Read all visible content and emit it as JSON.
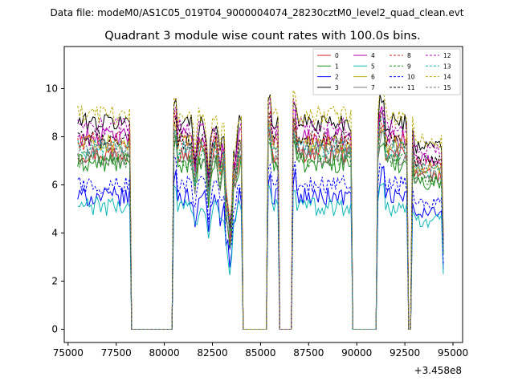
{
  "suptitle": "Data file: modeM0/AS1C05_019T04_9000004074_28230cztM0_level2_quad_clean.evt",
  "chart_data": {
    "type": "line",
    "title": "Quadrant 3 module wise count rates with 100.0s bins.",
    "xlabel": "",
    "ylabel": "",
    "x_offset_label": "+3.458e8",
    "xlim": [
      74800,
      95500
    ],
    "ylim": [
      -0.55,
      11.75
    ],
    "x_ticks": [
      75000,
      77500,
      80000,
      82500,
      85000,
      87500,
      90000,
      92500,
      95000
    ],
    "x_tick_labels": [
      "75000",
      "77500",
      "80000",
      "82500",
      "85000",
      "87500",
      "90000",
      "92500",
      "95000"
    ],
    "y_ticks": [
      0,
      2,
      4,
      6,
      8,
      10
    ],
    "y_tick_labels": [
      "0",
      "2",
      "4",
      "6",
      "8",
      "10"
    ],
    "legend_position": "upper right",
    "legend_columns": 4,
    "grid": false,
    "gaps": [
      [
        78350,
        80400
      ],
      [
        84150,
        85300
      ],
      [
        86050,
        86600
      ],
      [
        89850,
        90950
      ],
      [
        92700,
        92850
      ]
    ],
    "segments": [
      [
        75500,
        78250
      ],
      [
        80500,
        84050
      ],
      [
        85400,
        85950
      ],
      [
        86700,
        89750
      ],
      [
        91050,
        92650
      ],
      [
        92900,
        94500
      ]
    ],
    "series": [
      {
        "name": "0",
        "color": "#d62020",
        "dash": "solid",
        "level": 7.3
      },
      {
        "name": "1",
        "color": "#1a8f1a",
        "dash": "solid",
        "level": 6.9
      },
      {
        "name": "2",
        "color": "#0000ff",
        "dash": "solid",
        "level": 5.5
      },
      {
        "name": "3",
        "color": "#000000",
        "dash": "solid",
        "level": 8.6
      },
      {
        "name": "4",
        "color": "#b000b0",
        "dash": "solid",
        "level": 8.0
      },
      {
        "name": "5",
        "color": "#10b8b8",
        "dash": "solid",
        "level": 5.1
      },
      {
        "name": "6",
        "color": "#b8a800",
        "dash": "solid",
        "level": 7.7
      },
      {
        "name": "7",
        "color": "#777777",
        "dash": "solid",
        "level": 7.2
      },
      {
        "name": "8",
        "color": "#d62020",
        "dash": "dashed",
        "level": 7.8
      },
      {
        "name": "9",
        "color": "#1a8f1a",
        "dash": "dashed",
        "level": 7.1
      },
      {
        "name": "10",
        "color": "#0000ff",
        "dash": "dashed",
        "level": 6.0
      },
      {
        "name": "11",
        "color": "#000000",
        "dash": "dashed",
        "level": 7.9
      },
      {
        "name": "12",
        "color": "#b000b0",
        "dash": "dashed",
        "level": 8.4
      },
      {
        "name": "13",
        "color": "#10b8b8",
        "dash": "dashed",
        "level": 7.5
      },
      {
        "name": "14",
        "color": "#b8a800",
        "dash": "dashed",
        "level": 8.9
      },
      {
        "name": "15",
        "color": "#777777",
        "dash": "dashed",
        "level": 7.6
      }
    ]
  }
}
